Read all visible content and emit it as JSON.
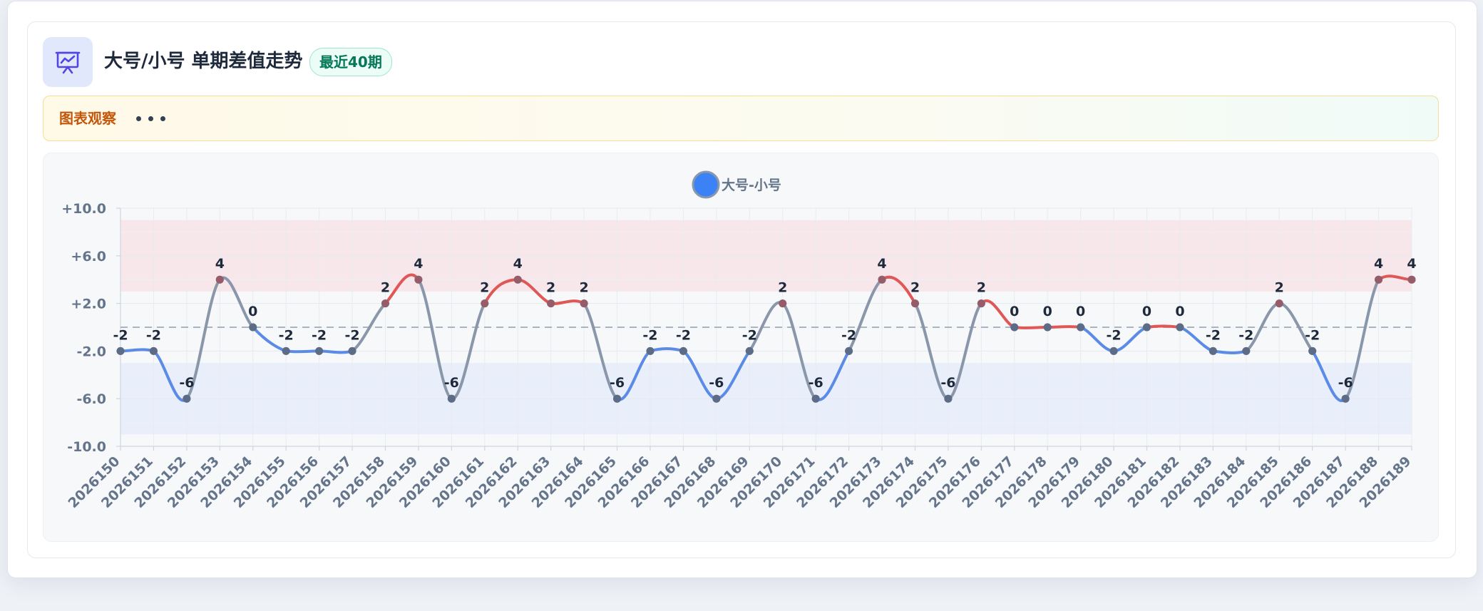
{
  "header": {
    "icon": "presentation-chart-icon",
    "title": "大号/小号 单期差值走势",
    "badge": "最近40期"
  },
  "note": {
    "label": "图表观察",
    "loading_icon": "ellipsis-icon"
  },
  "colors": {
    "positive": "#e05757",
    "negative": "#5b8be6",
    "neutral": "#8a97aa",
    "marker": "#3b82f6",
    "positive_band": "#f7e7ea",
    "negative_band": "#e8eefa"
  },
  "chart_data": {
    "type": "line",
    "title": "",
    "xlabel": "",
    "ylabel": "",
    "legend": {
      "position": "top-center"
    },
    "grid": true,
    "smooth": true,
    "ylim": [
      -10,
      10
    ],
    "yticks": [
      "+10.0",
      "+6.0",
      "+2.0",
      "-2.0",
      "-6.0",
      "-10.0"
    ],
    "reference_line": 0,
    "bands": [
      {
        "from": 3,
        "to": 9,
        "tone": "positive"
      },
      {
        "from": -9,
        "to": -3,
        "tone": "negative"
      }
    ],
    "categories": [
      "2026150",
      "2026151",
      "2026152",
      "2026153",
      "2026154",
      "2026155",
      "2026156",
      "2026157",
      "2026158",
      "2026159",
      "2026160",
      "2026161",
      "2026162",
      "2026163",
      "2026164",
      "2026165",
      "2026166",
      "2026167",
      "2026168",
      "2026169",
      "2026170",
      "2026171",
      "2026172",
      "2026173",
      "2026174",
      "2026175",
      "2026176",
      "2026177",
      "2026178",
      "2026179",
      "2026180",
      "2026181",
      "2026182",
      "2026183",
      "2026184",
      "2026185",
      "2026186",
      "2026187",
      "2026188",
      "2026189"
    ],
    "series": [
      {
        "name": "大号-小号",
        "values": [
          -2,
          -2,
          -6,
          4,
          0,
          -2,
          -2,
          -2,
          2,
          4,
          -6,
          2,
          4,
          2,
          2,
          -6,
          -2,
          -2,
          -6,
          -2,
          2,
          -6,
          -2,
          4,
          2,
          -6,
          2,
          0,
          0,
          0,
          -2,
          0,
          0,
          -2,
          -2,
          2,
          -2,
          -6,
          4,
          4
        ],
        "labels": [
          "-2",
          "-2",
          "-6",
          "4",
          "0",
          "-2",
          "-2",
          "-2",
          "2",
          "4",
          "-6",
          "2",
          "4",
          "2",
          "2",
          "-6",
          "-2",
          "-2",
          "-6",
          "-2",
          "2",
          "-6",
          "-2",
          "4",
          "2",
          "-6",
          "2",
          "0",
          "0",
          "0",
          "-2",
          "0",
          "0",
          "-2",
          "-2",
          "2",
          "-2",
          "-6",
          "4",
          "4"
        ]
      }
    ]
  }
}
